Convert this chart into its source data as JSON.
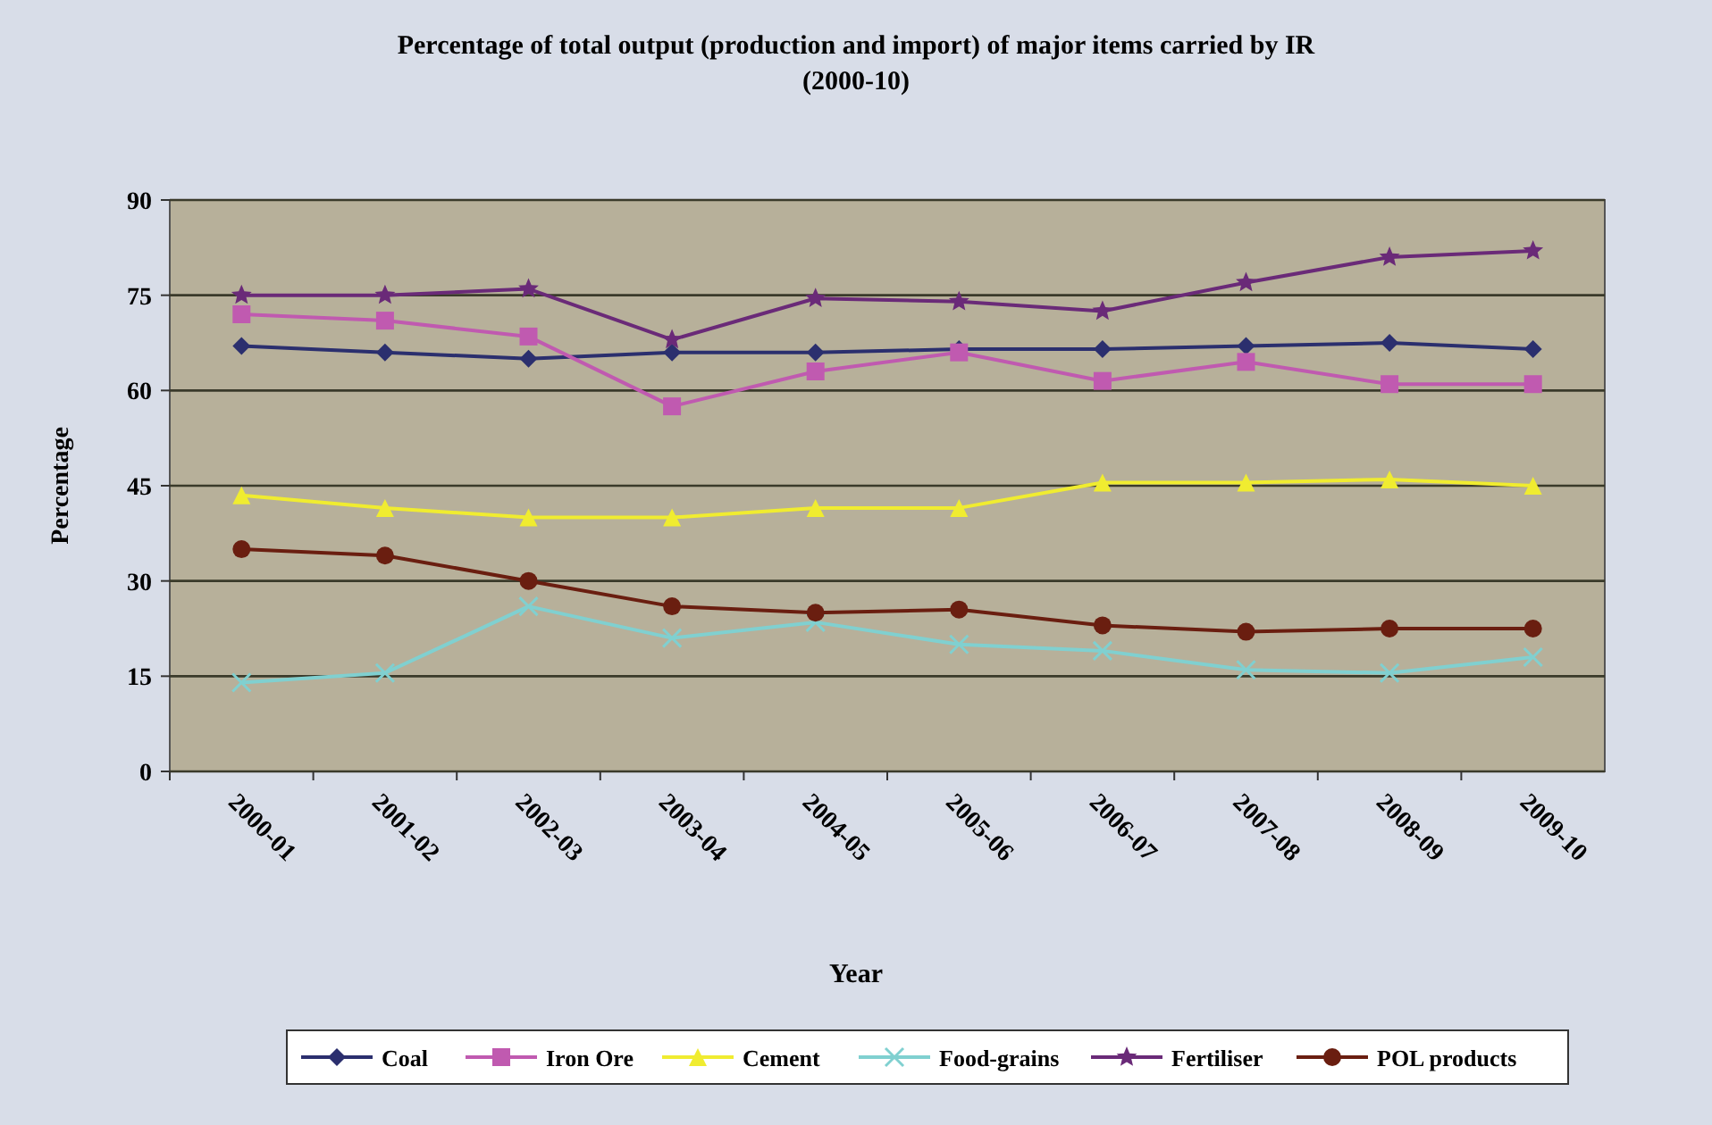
{
  "chart_data": {
    "type": "line",
    "title": "Percentage of total output (production and import) of major items carried by IR\n(2000-10)",
    "xlabel": "Year",
    "ylabel": "Percentage",
    "categories": [
      "2000-01",
      "2001-02",
      "2002-03",
      "2003-04",
      "2004-05",
      "2005-06",
      "2006-07",
      "2007-08",
      "2008-09",
      "2009-10"
    ],
    "ylim": [
      0,
      90
    ],
    "yticks": [
      0,
      15,
      30,
      45,
      60,
      75,
      90
    ],
    "grid": "y",
    "legend": "bottom",
    "series": [
      {
        "name": "Coal",
        "color": "#2b2f6e",
        "marker": "diamond",
        "values": [
          67,
          66,
          65,
          66,
          66,
          66.5,
          66.5,
          67,
          67.5,
          66.5
        ]
      },
      {
        "name": "Iron Ore",
        "color": "#c05ab0",
        "marker": "square",
        "values": [
          72,
          71,
          68.5,
          57.5,
          63,
          66,
          61.5,
          64.5,
          61,
          61
        ]
      },
      {
        "name": "Cement",
        "color": "#f0ec30",
        "marker": "triangle",
        "values": [
          43.5,
          41.5,
          40,
          40,
          41.5,
          41.5,
          45.5,
          45.5,
          46,
          45
        ]
      },
      {
        "name": "Food-grains",
        "color": "#80d0d0",
        "marker": "cross",
        "values": [
          14,
          15.5,
          26,
          21,
          23.5,
          20,
          19,
          16,
          15.5,
          18
        ]
      },
      {
        "name": "Fertiliser",
        "color": "#6a2a78",
        "marker": "star",
        "values": [
          75,
          75,
          76,
          68,
          74.5,
          74,
          72.5,
          77,
          81,
          82
        ]
      },
      {
        "name": "POL products",
        "color": "#6a1e10",
        "marker": "circle",
        "values": [
          35,
          34,
          30,
          26,
          25,
          25.5,
          23,
          22,
          22.5,
          22.5
        ]
      }
    ]
  }
}
